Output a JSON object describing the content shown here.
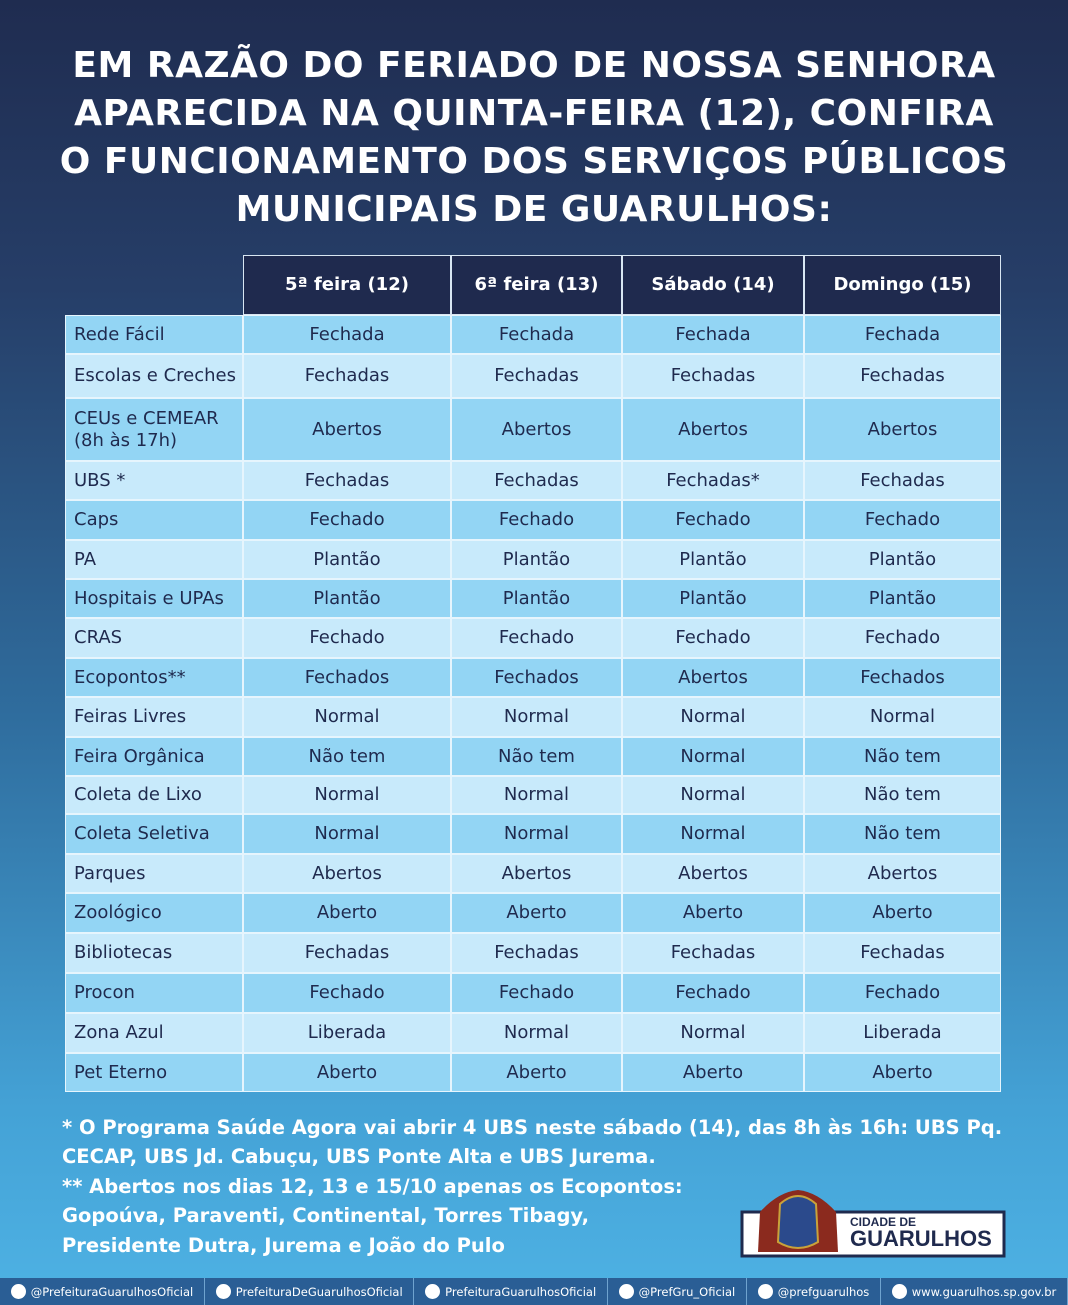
{
  "header": {
    "title_lines": [
      "EM RAZÃO DO FERIADO DE NOSSA SENHORA",
      "APARECIDA NA QUINTA-FEIRA (12), CONFIRA",
      "O FUNCIONAMENTO DOS SERVIÇOS PÚBLICOS",
      "MUNICIPAIS DE GUARULHOS:"
    ]
  },
  "table": {
    "headers": [
      "5ª feira (12)",
      "6ª feira (13)",
      "Sábado (14)",
      "Domingo (15)"
    ],
    "rows": [
      [
        "Rede Fácil",
        "Fechada",
        "Fechada",
        "Fechada",
        "Fechada"
      ],
      [
        "Escolas e Creches",
        "Fechadas",
        "Fechadas",
        "Fechadas",
        "Fechadas"
      ],
      [
        "CEUs e CEMEAR (8h às 17h)",
        "Abertos",
        "Abertos",
        "Abertos",
        "Abertos"
      ],
      [
        "UBS *",
        "Fechadas",
        "Fechadas",
        "Fechadas*",
        "Fechadas"
      ],
      [
        "Caps",
        "Fechado",
        "Fechado",
        "Fechado",
        "Fechado"
      ],
      [
        "PA",
        "Plantão",
        "Plantão",
        "Plantão",
        "Plantão"
      ],
      [
        "Hospitais e UPAs",
        "Plantão",
        "Plantão",
        "Plantão",
        "Plantão"
      ],
      [
        "CRAS",
        "Fechado",
        "Fechado",
        "Fechado",
        "Fechado"
      ],
      [
        "Ecopontos**",
        "Fechados",
        "Fechados",
        "Abertos",
        "Fechados"
      ],
      [
        "Feiras Livres",
        "Normal",
        "Normal",
        "Normal",
        "Normal"
      ],
      [
        "Feira Orgânica",
        "Não tem",
        "Não tem",
        "Normal",
        "Não tem"
      ],
      [
        "Coleta de Lixo",
        "Normal",
        "Normal",
        "Normal",
        "Não tem"
      ],
      [
        "Coleta Seletiva",
        "Normal",
        "Normal",
        "Normal",
        "Não tem"
      ],
      [
        "Parques",
        "Abertos",
        "Abertos",
        "Abertos",
        "Abertos"
      ],
      [
        "Zoológico",
        "Aberto",
        "Aberto",
        "Aberto",
        "Aberto"
      ],
      [
        "Bibliotecas",
        "Fechadas",
        "Fechadas",
        "Fechadas",
        "Fechadas"
      ],
      [
        "Procon",
        "Fechado",
        "Fechado",
        "Fechado",
        "Fechado"
      ],
      [
        "Zona Azul",
        "Liberada",
        "Normal",
        "Normal",
        "Liberada"
      ],
      [
        "Pet Eterno",
        "Aberto",
        "Aberto",
        "Aberto",
        "Aberto"
      ]
    ]
  },
  "footnotes": [
    "* O Programa Saúde Agora vai abrir 4 UBS neste sábado (14), das 8h às 16h: UBS Pq.",
    "CECAP, UBS Jd. Cabuçu, UBS Ponte Alta e UBS Jurema.",
    "** Abertos nos dias 12, 13 e 15/10 apenas os Ecopontos:",
    "Gopoúva, Paraventi, Continental, Torres Tibagy,",
    "Presidente Dutra, Jurema e João do Pulo"
  ],
  "logo": {
    "line1": "CIDADE DE",
    "line2": "GUARULHOS"
  },
  "footer": [
    "@PrefeituraGuarulhosOficial",
    "PrefeituraDeGuarulhosOficial",
    "PrefeituraGuarulhosOficial",
    "@PrefGru_Oficial",
    "@prefguarulhos",
    "www.guarulhos.sp.gov.br"
  ]
}
